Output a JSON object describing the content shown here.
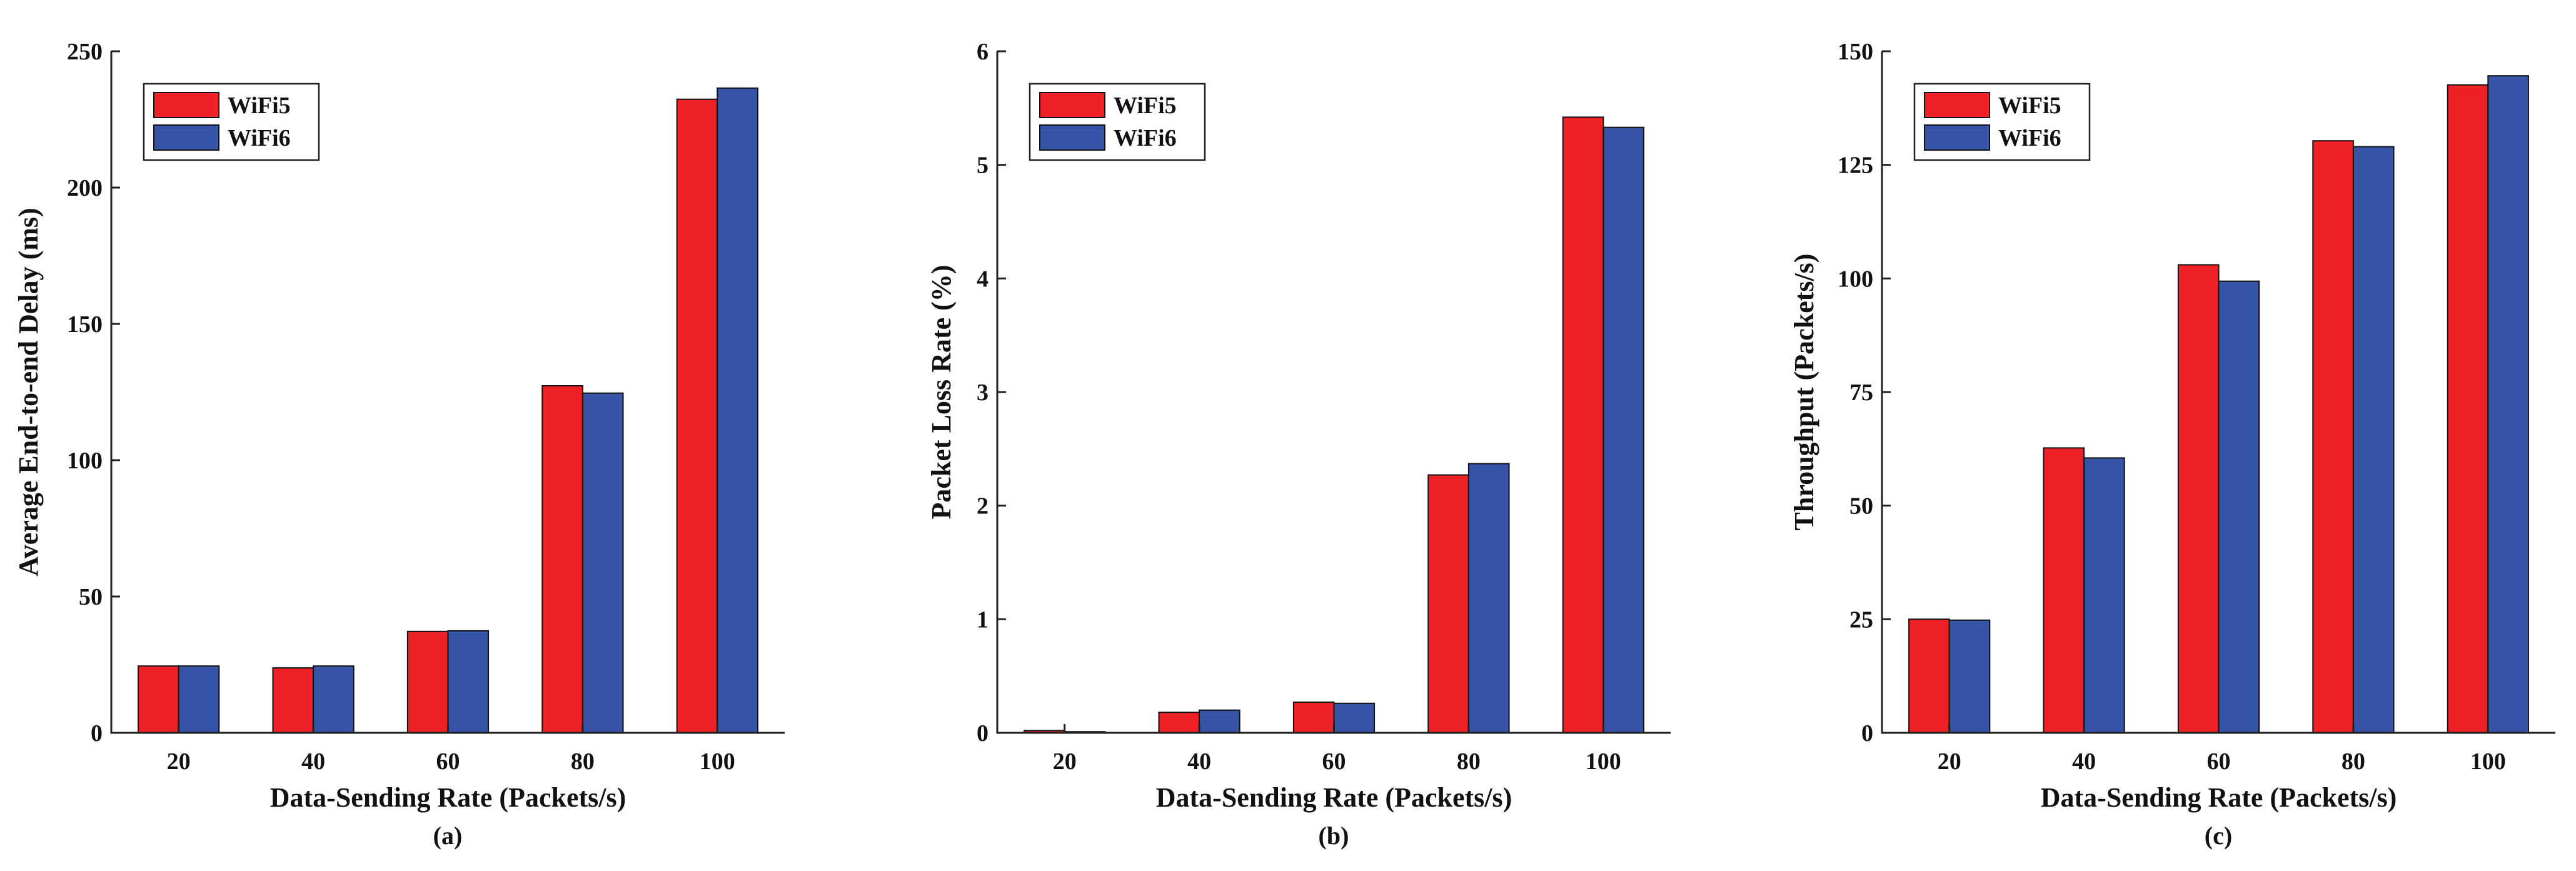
{
  "colors": {
    "WiFi5": "#EE2127",
    "WiFi6": "#3754A6"
  },
  "chart_data": [
    {
      "type": "bar",
      "categories": [
        "20",
        "40",
        "60",
        "80",
        "100"
      ],
      "series": [
        {
          "name": "WiFi5",
          "values": [
            24.5,
            23.8,
            37.2,
            127.3,
            232.4
          ]
        },
        {
          "name": "WiFi6",
          "values": [
            24.5,
            24.5,
            37.4,
            124.6,
            236.5
          ]
        }
      ],
      "title": "",
      "xlabel": "Data-Sending Rate (Packets/s)",
      "ylabel": "Average End-to-end Delay (ms)",
      "ylim": [
        0,
        250
      ],
      "yticks": [
        "0",
        "50",
        "100",
        "150",
        "200",
        "250"
      ],
      "legend": "top-left",
      "caption": "(a)"
    },
    {
      "type": "bar",
      "categories": [
        "20",
        "40",
        "60",
        "80",
        "100"
      ],
      "series": [
        {
          "name": "WiFi5",
          "values": [
            0.02,
            0.18,
            0.27,
            2.27,
            5.42
          ]
        },
        {
          "name": "WiFi6",
          "values": [
            0.01,
            0.2,
            0.26,
            2.37,
            5.33
          ]
        }
      ],
      "title": "",
      "xlabel": "Data-Sending Rate (Packets/s)",
      "ylabel": "Packet Loss Rate (%)",
      "ylim": [
        0,
        6
      ],
      "yticks": [
        "0",
        "1",
        "2",
        "3",
        "4",
        "5",
        "6"
      ],
      "legend": "top-left",
      "caption": "(b)"
    },
    {
      "type": "bar",
      "categories": [
        "20",
        "40",
        "60",
        "80",
        "100"
      ],
      "series": [
        {
          "name": "WiFi5",
          "values": [
            25.0,
            62.7,
            103.0,
            130.3,
            142.6
          ]
        },
        {
          "name": "WiFi6",
          "values": [
            24.8,
            60.5,
            99.4,
            129.0,
            144.6
          ]
        }
      ],
      "title": "",
      "xlabel": "Data-Sending Rate (Packets/s)",
      "ylabel": "Throughput (Packets/s)",
      "ylim": [
        0,
        150
      ],
      "yticks": [
        "0",
        "25",
        "50",
        "75",
        "100",
        "125",
        "150"
      ],
      "legend": "top-left",
      "caption": "(c)"
    }
  ]
}
